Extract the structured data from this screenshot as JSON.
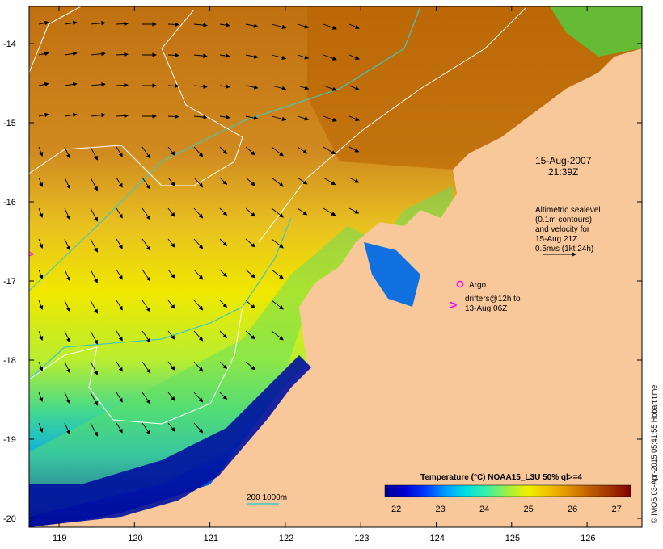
{
  "map": {
    "date": "15-Aug-2007",
    "time": "21:39Z",
    "lat_ticks": [
      "-14",
      "-15",
      "-16",
      "-17",
      "-18",
      "-19",
      "-20"
    ],
    "lon_ticks": [
      "119",
      "120",
      "121",
      "122",
      "123",
      "124",
      "125",
      "126"
    ],
    "sealevel_note": [
      "Altimetric sealevel",
      "(0.1m contours)",
      "and velocity for",
      "15-Aug 21Z",
      "0.5m/s (1kt 24h)"
    ],
    "argo_label": "Argo",
    "drifters_label": [
      "drifters@12h to",
      "13-Aug 06Z"
    ],
    "depth_label": "200  1000m",
    "colorbar_title": "Temperature (°C) NOAA15_L3U 50% ql>=4",
    "colorbar_ticks": [
      "22",
      "23",
      "24",
      "25",
      "26",
      "27"
    ],
    "credit": "© IMOS 03-Apr-2015 05:41:55 Hobart time"
  },
  "colors": {
    "land": "#f9c89a",
    "contour_200": "#40c8c0",
    "contour_sealevel": "#ffffff",
    "drifter_marker": "#ff00ff",
    "argo_marker": "#ff00ff"
  },
  "colorbar_colors": [
    "#000090",
    "#0000d0",
    "#0040ff",
    "#00a0ff",
    "#00e0e0",
    "#40f0a0",
    "#a0f040",
    "#f0f000",
    "#f0c000",
    "#e09000",
    "#c06000",
    "#a03000",
    "#800000"
  ]
}
